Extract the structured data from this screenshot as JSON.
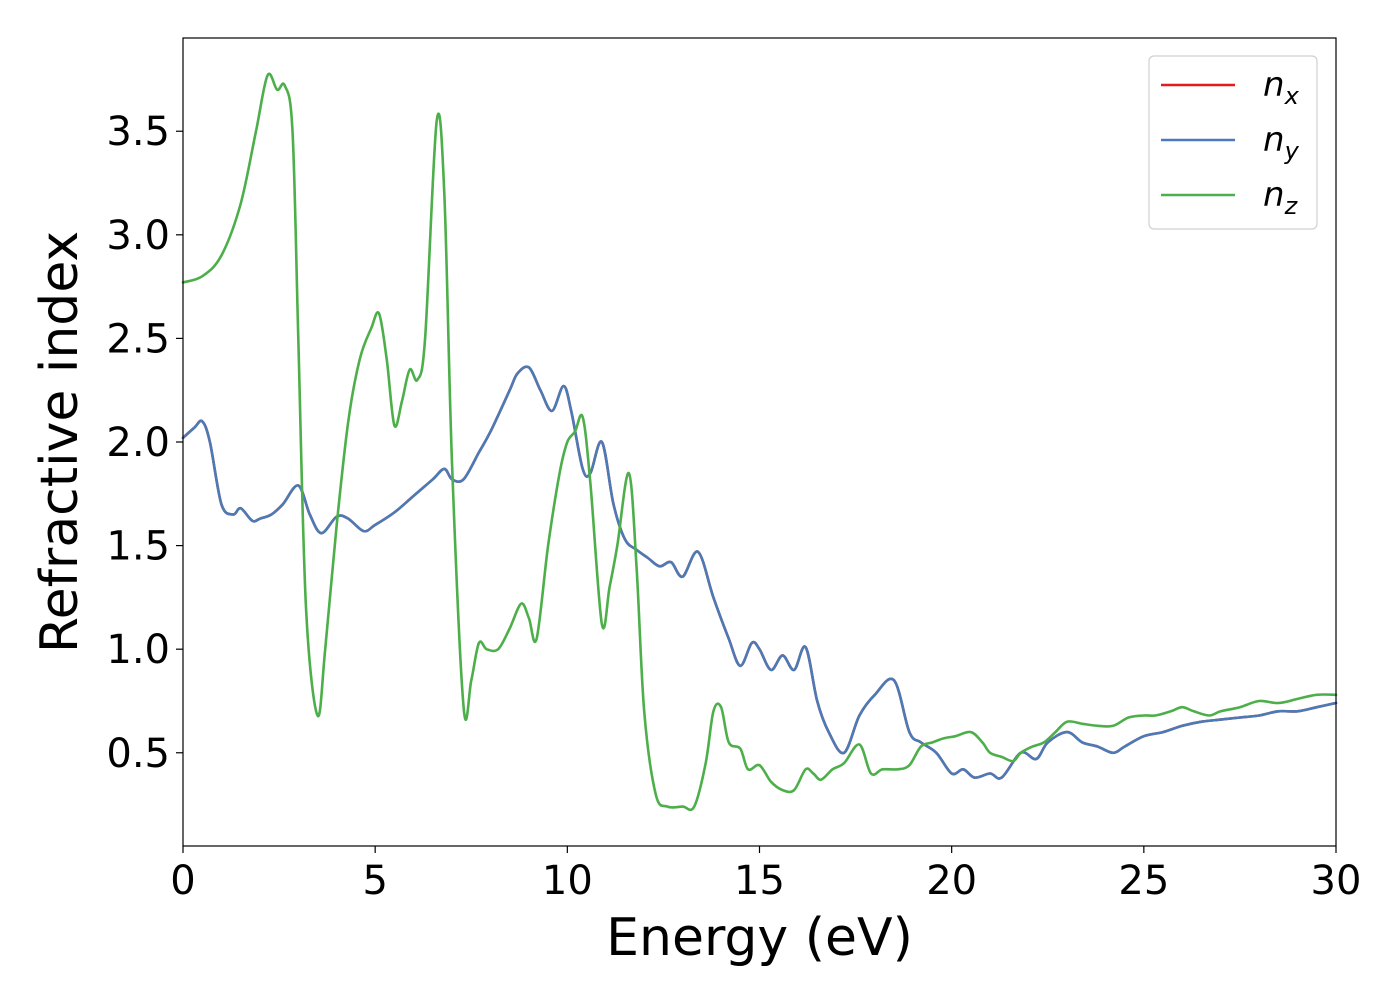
{
  "chart_data": {
    "type": "line",
    "xlabel": "Energy (eV)",
    "ylabel": "Refractive index",
    "xlim": [
      0,
      30
    ],
    "ylim": [
      0.05,
      3.95
    ],
    "xticks": [
      0,
      5,
      10,
      15,
      20,
      25,
      30
    ],
    "xtick_labels": [
      "0",
      "5",
      "10",
      "15",
      "20",
      "25",
      "30"
    ],
    "yticks": [
      0.5,
      1.0,
      1.5,
      2.0,
      2.5,
      3.0,
      3.5
    ],
    "ytick_labels": [
      "0.5",
      "1.0",
      "1.5",
      "2.0",
      "2.5",
      "3.0",
      "3.5"
    ],
    "grid": false,
    "legend_position": "top-right",
    "series": [
      {
        "name": "n",
        "subscript": "x",
        "color": "#e41a1c",
        "x": [
          0,
          0.3,
          0.5,
          0.7,
          1.0,
          1.3,
          1.5,
          1.8,
          2.0,
          2.3,
          2.6,
          3.0,
          3.3,
          3.6,
          4.0,
          4.3,
          4.7,
          5.0,
          5.5,
          6.0,
          6.5,
          6.8,
          7.0,
          7.3,
          7.7,
          8.0,
          8.5,
          8.7,
          9.0,
          9.3,
          9.6,
          9.9,
          10.1,
          10.4,
          10.6,
          10.9,
          11.2,
          11.5,
          11.8,
          12.1,
          12.4,
          12.7,
          13.0,
          13.4,
          13.8,
          14.2,
          14.5,
          14.8,
          15.0,
          15.3,
          15.6,
          15.9,
          16.2,
          16.5,
          16.8,
          17.2,
          17.6,
          18.0,
          18.5,
          18.9,
          19.2,
          19.6,
          20.0,
          20.3,
          20.6,
          21.0,
          21.3,
          21.8,
          22.2,
          22.5,
          23.0,
          23.4,
          23.8,
          24.2,
          24.5,
          25.0,
          25.5,
          26.0,
          26.5,
          27.0,
          27.5,
          28.0,
          28.5,
          29.0,
          29.5,
          30.0
        ],
        "y": [
          2.02,
          2.07,
          2.1,
          2.0,
          1.7,
          1.65,
          1.68,
          1.62,
          1.63,
          1.65,
          1.7,
          1.79,
          1.65,
          1.56,
          1.64,
          1.63,
          1.57,
          1.6,
          1.66,
          1.74,
          1.82,
          1.87,
          1.82,
          1.82,
          1.95,
          2.05,
          2.25,
          2.33,
          2.36,
          2.25,
          2.15,
          2.27,
          2.15,
          1.87,
          1.85,
          2.0,
          1.7,
          1.53,
          1.48,
          1.44,
          1.4,
          1.42,
          1.35,
          1.47,
          1.25,
          1.05,
          0.92,
          1.03,
          1.0,
          0.9,
          0.97,
          0.9,
          1.01,
          0.75,
          0.6,
          0.5,
          0.68,
          0.78,
          0.85,
          0.6,
          0.55,
          0.5,
          0.4,
          0.42,
          0.38,
          0.4,
          0.38,
          0.5,
          0.47,
          0.55,
          0.6,
          0.55,
          0.53,
          0.5,
          0.53,
          0.58,
          0.6,
          0.63,
          0.65,
          0.66,
          0.67,
          0.68,
          0.7,
          0.7,
          0.72,
          0.74
        ]
      },
      {
        "name": "n",
        "subscript": "y",
        "color": "#4a7bb7",
        "x": [
          0,
          0.3,
          0.5,
          0.7,
          1.0,
          1.3,
          1.5,
          1.8,
          2.0,
          2.3,
          2.6,
          3.0,
          3.3,
          3.6,
          4.0,
          4.3,
          4.7,
          5.0,
          5.5,
          6.0,
          6.5,
          6.8,
          7.0,
          7.3,
          7.7,
          8.0,
          8.5,
          8.7,
          9.0,
          9.3,
          9.6,
          9.9,
          10.1,
          10.4,
          10.6,
          10.9,
          11.2,
          11.5,
          11.8,
          12.1,
          12.4,
          12.7,
          13.0,
          13.4,
          13.8,
          14.2,
          14.5,
          14.8,
          15.0,
          15.3,
          15.6,
          15.9,
          16.2,
          16.5,
          16.8,
          17.2,
          17.6,
          18.0,
          18.5,
          18.9,
          19.2,
          19.6,
          20.0,
          20.3,
          20.6,
          21.0,
          21.3,
          21.8,
          22.2,
          22.5,
          23.0,
          23.4,
          23.8,
          24.2,
          24.5,
          25.0,
          25.5,
          26.0,
          26.5,
          27.0,
          27.5,
          28.0,
          28.5,
          29.0,
          29.5,
          30.0
        ],
        "y": [
          2.02,
          2.07,
          2.1,
          2.0,
          1.7,
          1.65,
          1.68,
          1.62,
          1.63,
          1.65,
          1.7,
          1.79,
          1.65,
          1.56,
          1.64,
          1.63,
          1.57,
          1.6,
          1.66,
          1.74,
          1.82,
          1.87,
          1.82,
          1.82,
          1.95,
          2.05,
          2.25,
          2.33,
          2.36,
          2.25,
          2.15,
          2.27,
          2.15,
          1.87,
          1.85,
          2.0,
          1.7,
          1.53,
          1.48,
          1.44,
          1.4,
          1.42,
          1.35,
          1.47,
          1.25,
          1.05,
          0.92,
          1.03,
          1.0,
          0.9,
          0.97,
          0.9,
          1.01,
          0.75,
          0.6,
          0.5,
          0.68,
          0.78,
          0.85,
          0.6,
          0.55,
          0.5,
          0.4,
          0.42,
          0.38,
          0.4,
          0.38,
          0.5,
          0.47,
          0.55,
          0.6,
          0.55,
          0.53,
          0.5,
          0.53,
          0.58,
          0.6,
          0.63,
          0.65,
          0.66,
          0.67,
          0.68,
          0.7,
          0.7,
          0.72,
          0.74
        ]
      },
      {
        "name": "n",
        "subscript": "z",
        "color": "#4daf4a",
        "x": [
          0,
          0.5,
          1.0,
          1.5,
          1.9,
          2.2,
          2.45,
          2.65,
          2.85,
          3.0,
          3.2,
          3.5,
          3.7,
          4.0,
          4.3,
          4.6,
          4.9,
          5.1,
          5.3,
          5.5,
          5.7,
          5.9,
          6.1,
          6.3,
          6.6,
          6.8,
          7.0,
          7.3,
          7.5,
          7.7,
          7.9,
          8.2,
          8.5,
          8.8,
          9.0,
          9.2,
          9.5,
          9.8,
          10.0,
          10.2,
          10.4,
          10.6,
          10.9,
          11.1,
          11.3,
          11.6,
          11.8,
          12.0,
          12.3,
          12.6,
          13.0,
          13.3,
          13.6,
          13.8,
          14.0,
          14.2,
          14.5,
          14.7,
          15.0,
          15.3,
          15.6,
          15.9,
          16.2,
          16.4,
          16.6,
          16.9,
          17.2,
          17.6,
          17.9,
          18.2,
          18.6,
          18.9,
          19.2,
          19.5,
          19.8,
          20.1,
          20.5,
          20.8,
          21.0,
          21.3,
          21.6,
          21.8,
          22.1,
          22.4,
          22.7,
          23.0,
          23.4,
          23.8,
          24.2,
          24.6,
          25.0,
          25.3,
          25.7,
          26.0,
          26.3,
          26.7,
          27.0,
          27.5,
          28.0,
          28.5,
          29.0,
          29.5,
          30.0
        ],
        "y": [
          2.77,
          2.8,
          2.9,
          3.15,
          3.5,
          3.77,
          3.7,
          3.72,
          3.5,
          2.5,
          1.2,
          0.68,
          1.0,
          1.6,
          2.1,
          2.4,
          2.55,
          2.62,
          2.4,
          2.08,
          2.2,
          2.35,
          2.3,
          2.5,
          3.55,
          3.2,
          1.9,
          0.72,
          0.85,
          1.03,
          1.0,
          1.0,
          1.1,
          1.22,
          1.15,
          1.05,
          1.5,
          1.85,
          2.0,
          2.05,
          2.12,
          1.8,
          1.12,
          1.3,
          1.5,
          1.85,
          1.4,
          0.7,
          0.3,
          0.24,
          0.24,
          0.24,
          0.45,
          0.7,
          0.72,
          0.55,
          0.52,
          0.42,
          0.44,
          0.36,
          0.32,
          0.32,
          0.42,
          0.4,
          0.37,
          0.42,
          0.45,
          0.54,
          0.4,
          0.42,
          0.42,
          0.44,
          0.53,
          0.55,
          0.57,
          0.58,
          0.6,
          0.55,
          0.5,
          0.48,
          0.46,
          0.5,
          0.53,
          0.55,
          0.6,
          0.65,
          0.64,
          0.63,
          0.63,
          0.67,
          0.68,
          0.68,
          0.7,
          0.72,
          0.7,
          0.68,
          0.7,
          0.72,
          0.75,
          0.74,
          0.76,
          0.78,
          0.78
        ]
      }
    ]
  }
}
